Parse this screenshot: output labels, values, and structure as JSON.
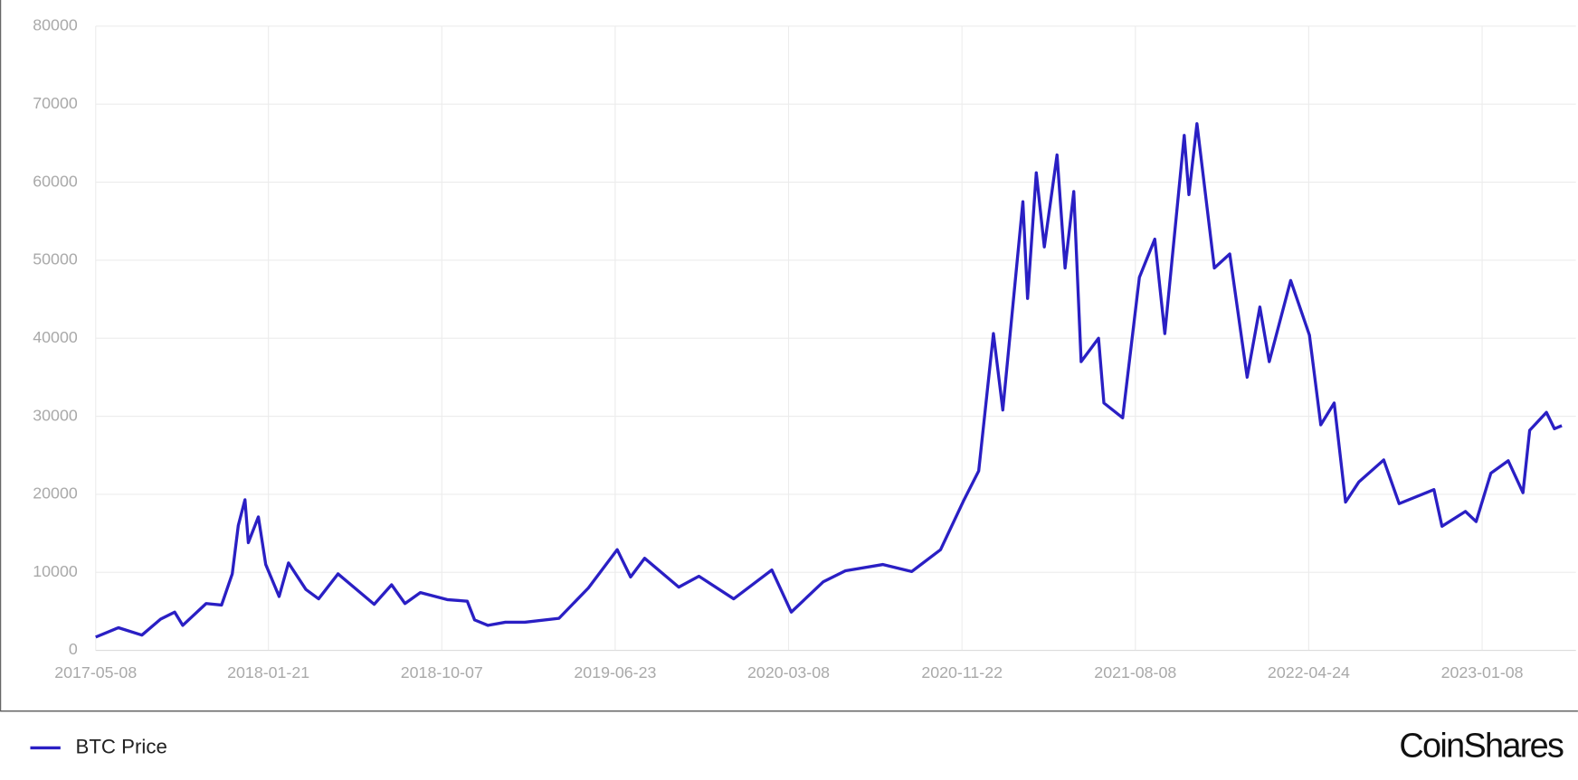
{
  "chart_data": {
    "type": "line",
    "x": [
      "2017-05-08",
      "2017-06-11",
      "2017-07-16",
      "2017-08-13",
      "2017-09-03",
      "2017-09-15",
      "2017-10-20",
      "2017-11-12",
      "2017-11-28",
      "2017-12-07",
      "2017-12-17",
      "2017-12-22",
      "2018-01-06",
      "2018-01-17",
      "2018-02-06",
      "2018-02-20",
      "2018-03-18",
      "2018-04-06",
      "2018-05-05",
      "2018-06-28",
      "2018-07-24",
      "2018-08-13",
      "2018-09-05",
      "2018-10-15",
      "2018-11-14",
      "2018-11-25",
      "2018-12-15",
      "2019-01-10",
      "2019-02-08",
      "2019-03-31",
      "2019-05-14",
      "2019-06-26",
      "2019-07-16",
      "2019-08-06",
      "2019-09-26",
      "2019-10-26",
      "2019-12-17",
      "2020-02-12",
      "2020-03-12",
      "2020-04-29",
      "2020-06-01",
      "2020-07-27",
      "2020-09-08",
      "2020-10-21",
      "2020-11-24",
      "2020-12-17",
      "2021-01-08",
      "2021-01-22",
      "2021-02-21",
      "2021-02-28",
      "2021-03-13",
      "2021-03-25",
      "2021-04-13",
      "2021-04-25",
      "2021-05-08",
      "2021-05-19",
      "2021-06-14",
      "2021-06-22",
      "2021-07-20",
      "2021-08-14",
      "2021-09-06",
      "2021-09-21",
      "2021-10-20",
      "2021-10-27",
      "2021-11-08",
      "2021-12-04",
      "2021-12-27",
      "2022-01-22",
      "2022-02-10",
      "2022-02-24",
      "2022-03-28",
      "2022-04-25",
      "2022-05-12",
      "2022-06-01",
      "2022-06-18",
      "2022-07-08",
      "2022-08-14",
      "2022-09-06",
      "2022-10-28",
      "2022-11-09",
      "2022-12-14",
      "2022-12-30",
      "2023-01-21",
      "2023-02-16",
      "2023-03-10",
      "2023-03-20",
      "2023-04-14",
      "2023-04-26",
      "2023-05-07"
    ],
    "series": [
      {
        "name": "BTC Price",
        "color": "#2a1fc4",
        "values": [
          1700,
          2900,
          1950,
          4000,
          4900,
          3200,
          6000,
          5800,
          9800,
          16000,
          19300,
          13800,
          17100,
          11000,
          6900,
          11200,
          7800,
          6600,
          9800,
          5900,
          8400,
          6000,
          7400,
          6500,
          6300,
          3900,
          3200,
          3600,
          3600,
          4100,
          8000,
          12900,
          9400,
          11800,
          8100,
          9500,
          6600,
          10300,
          4900,
          8800,
          10200,
          11000,
          10100,
          12900,
          19100,
          23000,
          40600,
          30800,
          57500,
          45100,
          61200,
          51700,
          63500,
          49000,
          58800,
          37000,
          40000,
          31700,
          29800,
          47800,
          52700,
          40600,
          66000,
          58400,
          67500,
          49000,
          50800,
          35000,
          44000,
          37000,
          47400,
          40400,
          28900,
          31700,
          19000,
          21600,
          24400,
          18800,
          20600,
          15900,
          17800,
          16500,
          22700,
          24300,
          20200,
          28200,
          30500,
          28400,
          28800
        ]
      }
    ],
    "xlim": [
      "2017-05-08",
      "2023-05-07"
    ],
    "xticks": [
      "2017-05-08",
      "2018-01-21",
      "2018-10-07",
      "2019-06-23",
      "2020-03-08",
      "2020-11-22",
      "2021-08-08",
      "2022-04-24",
      "2023-01-08"
    ],
    "ylim": [
      0,
      80000
    ],
    "yticks": [
      0,
      10000,
      20000,
      30000,
      40000,
      50000,
      60000,
      70000,
      80000
    ],
    "grid": true
  },
  "logo": "CoinShares"
}
